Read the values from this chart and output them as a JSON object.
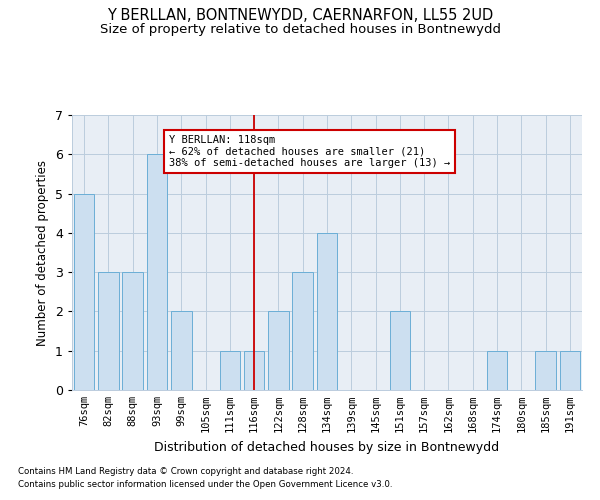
{
  "title": "Y BERLLAN, BONTNEWYDD, CAERNARFON, LL55 2UD",
  "subtitle": "Size of property relative to detached houses in Bontnewydd",
  "xlabel": "Distribution of detached houses by size in Bontnewydd",
  "ylabel": "Number of detached properties",
  "footnote1": "Contains HM Land Registry data © Crown copyright and database right 2024.",
  "footnote2": "Contains public sector information licensed under the Open Government Licence v3.0.",
  "categories": [
    "76sqm",
    "82sqm",
    "88sqm",
    "93sqm",
    "99sqm",
    "105sqm",
    "111sqm",
    "116sqm",
    "122sqm",
    "128sqm",
    "134sqm",
    "139sqm",
    "145sqm",
    "151sqm",
    "157sqm",
    "162sqm",
    "168sqm",
    "174sqm",
    "180sqm",
    "185sqm",
    "191sqm"
  ],
  "values": [
    5,
    3,
    3,
    6,
    2,
    0,
    1,
    1,
    2,
    3,
    4,
    0,
    0,
    2,
    0,
    0,
    0,
    1,
    0,
    1,
    1
  ],
  "bar_color": "#ccdff0",
  "bar_edge_color": "#6baed6",
  "highlight_index": 7,
  "highlight_edge_color": "#cc0000",
  "annotation_text": "Y BERLLAN: 118sqm\n← 62% of detached houses are smaller (21)\n38% of semi-detached houses are larger (13) →",
  "annotation_box_color": "#ffffff",
  "annotation_box_edge_color": "#cc0000",
  "ylim": [
    0,
    7
  ],
  "yticks": [
    0,
    1,
    2,
    3,
    4,
    5,
    6,
    7
  ],
  "grid_color": "#bbccdd",
  "background_color": "#e8eef5",
  "title_fontsize": 10.5,
  "subtitle_fontsize": 9.5
}
